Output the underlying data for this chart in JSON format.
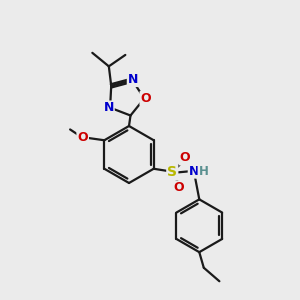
{
  "bg_color": "#ebebeb",
  "bond_color": "#1a1a1a",
  "bw": 1.6,
  "atom_colors": {
    "N": "#0000cc",
    "O": "#cc0000",
    "S": "#b8b800",
    "H": "#5a9090",
    "C": "#1a1a1a"
  },
  "figsize": [
    3.0,
    3.0
  ],
  "dpi": 100
}
